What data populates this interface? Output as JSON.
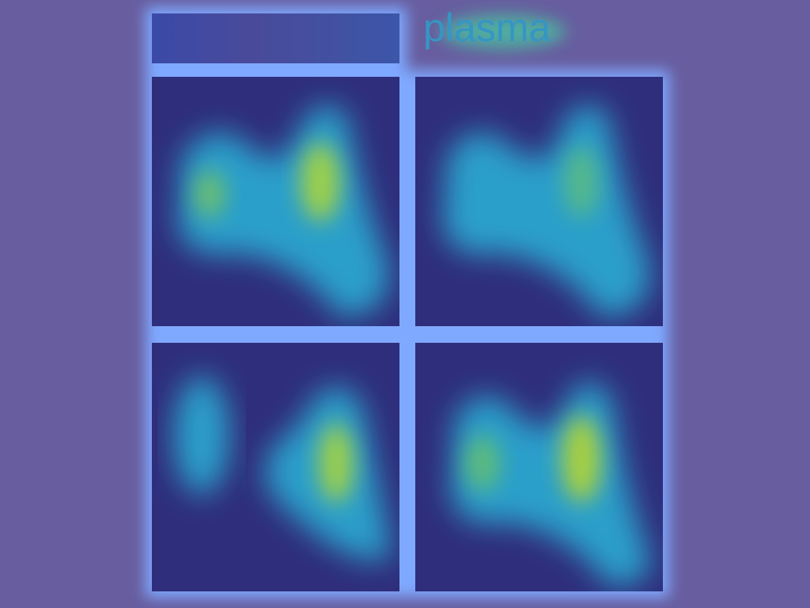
{
  "label": "plasma"
}
